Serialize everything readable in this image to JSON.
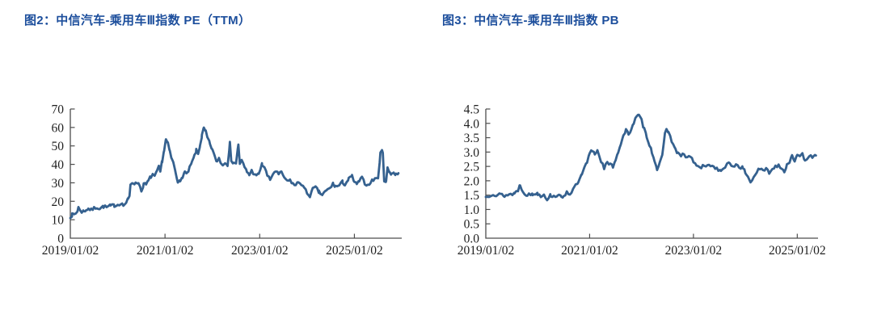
{
  "styles": {
    "background": "#ffffff",
    "title_color": "#1c4e9c",
    "line_color": "#35618f",
    "axis_color": "#4d4d4d",
    "tick_label_color": "#1f1f1f"
  },
  "chart_data": [
    {
      "type": "line",
      "title": "图2：中信汽车-乘用车Ⅲ指数 PE（TTM）",
      "xlabel": "",
      "ylabel": "",
      "grid": false,
      "legend": "none",
      "x_ticks": [
        "2019/01/02",
        "2021/01/02",
        "2023/01/02",
        "2025/01/02"
      ],
      "x_tick_years": [
        2019.0,
        2021.0,
        2023.0,
        2025.0
      ],
      "x_range": [
        2019.0,
        2026.0
      ],
      "y_tick_labels": [
        "0",
        "10",
        "20",
        "30",
        "40",
        "50",
        "60",
        "70"
      ],
      "y_tick_values": [
        0,
        10,
        20,
        30,
        40,
        50,
        60,
        70
      ],
      "ylim": [
        0,
        70
      ],
      "series": [
        {
          "name": "中信汽车-乘用车Ⅲ指数 PE(TTM)",
          "points": [
            [
              2019.0,
              11.8
            ],
            [
              2019.04,
              12.6
            ],
            [
              2019.08,
              12.9
            ],
            [
              2019.12,
              13.6
            ],
            [
              2019.15,
              14.9
            ],
            [
              2019.17,
              16.8
            ],
            [
              2019.2,
              15.0
            ],
            [
              2019.24,
              14.4
            ],
            [
              2019.28,
              14.6
            ],
            [
              2019.33,
              15.3
            ],
            [
              2019.38,
              16.0
            ],
            [
              2019.44,
              15.2
            ],
            [
              2019.5,
              16.2
            ],
            [
              2019.56,
              16.8
            ],
            [
              2019.62,
              16.1
            ],
            [
              2019.7,
              17.2
            ],
            [
              2019.77,
              16.7
            ],
            [
              2019.85,
              17.5
            ],
            [
              2019.93,
              17.8
            ],
            [
              2020.0,
              18.2
            ],
            [
              2020.06,
              19.0
            ],
            [
              2020.12,
              17.8
            ],
            [
              2020.18,
              19.2
            ],
            [
              2020.22,
              21.0
            ],
            [
              2020.25,
              22.5
            ],
            [
              2020.27,
              29.3
            ],
            [
              2020.32,
              30.4
            ],
            [
              2020.38,
              29.4
            ],
            [
              2020.44,
              30.4
            ],
            [
              2020.5,
              25.6
            ],
            [
              2020.55,
              29.4
            ],
            [
              2020.6,
              29.0
            ],
            [
              2020.65,
              31.0
            ],
            [
              2020.7,
              33.4
            ],
            [
              2020.74,
              34.5
            ],
            [
              2020.78,
              33.0
            ],
            [
              2020.83,
              36.4
            ],
            [
              2020.87,
              38.4
            ],
            [
              2020.9,
              36.0
            ],
            [
              2020.94,
              42.0
            ],
            [
              2020.98,
              47.5
            ],
            [
              2021.02,
              53.5
            ],
            [
              2021.06,
              51.0
            ],
            [
              2021.1,
              47.0
            ],
            [
              2021.14,
              43.0
            ],
            [
              2021.18,
              40.5
            ],
            [
              2021.22,
              36.5
            ],
            [
              2021.27,
              31.0
            ],
            [
              2021.32,
              30.2
            ],
            [
              2021.37,
              33.5
            ],
            [
              2021.42,
              36.0
            ],
            [
              2021.46,
              34.5
            ],
            [
              2021.52,
              38.0
            ],
            [
              2021.57,
              41.0
            ],
            [
              2021.62,
              44.5
            ],
            [
              2021.66,
              47.5
            ],
            [
              2021.7,
              45.5
            ],
            [
              2021.74,
              50.5
            ],
            [
              2021.78,
              55.5
            ],
            [
              2021.82,
              59.5
            ],
            [
              2021.86,
              57.5
            ],
            [
              2021.9,
              54.0
            ],
            [
              2021.95,
              51.0
            ],
            [
              2022.0,
              48.0
            ],
            [
              2022.05,
              44.0
            ],
            [
              2022.1,
              41.5
            ],
            [
              2022.14,
              43.5
            ],
            [
              2022.18,
              41.0
            ],
            [
              2022.22,
              39.5
            ],
            [
              2022.27,
              41.5
            ],
            [
              2022.32,
              40.0
            ],
            [
              2022.37,
              51.5
            ],
            [
              2022.4,
              41.0
            ],
            [
              2022.45,
              41.5
            ],
            [
              2022.5,
              40.5
            ],
            [
              2022.55,
              51.0
            ],
            [
              2022.58,
              40.5
            ],
            [
              2022.62,
              42.0
            ],
            [
              2022.68,
              38.5
            ],
            [
              2022.73,
              36.0
            ],
            [
              2022.78,
              34.5
            ],
            [
              2022.83,
              36.5
            ],
            [
              2022.88,
              35.0
            ],
            [
              2022.93,
              33.5
            ],
            [
              2022.98,
              35.0
            ],
            [
              2023.05,
              40.0
            ],
            [
              2023.1,
              38.5
            ],
            [
              2023.16,
              34.0
            ],
            [
              2023.22,
              31.5
            ],
            [
              2023.28,
              35.0
            ],
            [
              2023.34,
              36.5
            ],
            [
              2023.4,
              34.5
            ],
            [
              2023.46,
              35.5
            ],
            [
              2023.52,
              33.0
            ],
            [
              2023.58,
              30.5
            ],
            [
              2023.64,
              31.5
            ],
            [
              2023.7,
              29.5
            ],
            [
              2023.76,
              28.5
            ],
            [
              2023.82,
              30.5
            ],
            [
              2023.88,
              29.5
            ],
            [
              2023.94,
              27.0
            ],
            [
              2024.0,
              24.5
            ],
            [
              2024.06,
              23.0
            ],
            [
              2024.12,
              26.5
            ],
            [
              2024.18,
              27.5
            ],
            [
              2024.25,
              25.0
            ],
            [
              2024.32,
              23.5
            ],
            [
              2024.4,
              25.5
            ],
            [
              2024.48,
              27.0
            ],
            [
              2024.55,
              29.5
            ],
            [
              2024.6,
              28.0
            ],
            [
              2024.68,
              28.5
            ],
            [
              2024.75,
              30.5
            ],
            [
              2024.8,
              29.0
            ],
            [
              2024.88,
              32.0
            ],
            [
              2024.95,
              33.5
            ],
            [
              2025.0,
              30.5
            ],
            [
              2025.05,
              29.0
            ],
            [
              2025.1,
              31.0
            ],
            [
              2025.16,
              32.5
            ],
            [
              2025.22,
              30.0
            ],
            [
              2025.28,
              28.5
            ],
            [
              2025.34,
              30.5
            ],
            [
              2025.4,
              31.5
            ],
            [
              2025.46,
              33.0
            ],
            [
              2025.5,
              32.0
            ],
            [
              2025.55,
              46.5
            ],
            [
              2025.6,
              47.0
            ],
            [
              2025.63,
              31.5
            ],
            [
              2025.67,
              30.5
            ],
            [
              2025.7,
              38.0
            ],
            [
              2025.74,
              36.0
            ],
            [
              2025.78,
              35.0
            ],
            [
              2025.83,
              35.5
            ],
            [
              2025.88,
              34.5
            ],
            [
              2025.93,
              35.2
            ]
          ]
        }
      ]
    },
    {
      "type": "line",
      "title": "图3：中信汽车-乘用车Ⅲ指数 PB",
      "xlabel": "",
      "ylabel": "",
      "grid": false,
      "legend": "none",
      "x_ticks": [
        "2019/01/02",
        "2021/01/02",
        "2023/01/02",
        "2025/01/02"
      ],
      "x_tick_years": [
        2019.0,
        2021.0,
        2023.0,
        2025.0
      ],
      "x_range": [
        2019.0,
        2025.4
      ],
      "y_tick_labels": [
        "0.0",
        "0.5",
        "1.0",
        "1.5",
        "2.0",
        "2.5",
        "3.0",
        "3.5",
        "4.0",
        "4.5"
      ],
      "y_tick_values": [
        0,
        0.5,
        1.0,
        1.5,
        2.0,
        2.5,
        3.0,
        3.5,
        4.0,
        4.5
      ],
      "ylim": [
        0,
        4.5
      ],
      "series": [
        {
          "name": "中信汽车-乘用车Ⅲ指数 PB",
          "points": [
            [
              2019.0,
              1.43
            ],
            [
              2019.08,
              1.5
            ],
            [
              2019.14,
              1.56
            ],
            [
              2019.2,
              1.48
            ],
            [
              2019.28,
              1.53
            ],
            [
              2019.36,
              1.48
            ],
            [
              2019.45,
              1.52
            ],
            [
              2019.55,
              1.56
            ],
            [
              2019.62,
              1.68
            ],
            [
              2019.66,
              1.85
            ],
            [
              2019.72,
              1.62
            ],
            [
              2019.8,
              1.5
            ],
            [
              2019.9,
              1.53
            ],
            [
              2020.0,
              1.56
            ],
            [
              2020.06,
              1.48
            ],
            [
              2020.12,
              1.53
            ],
            [
              2020.18,
              1.36
            ],
            [
              2020.25,
              1.5
            ],
            [
              2020.31,
              1.45
            ],
            [
              2020.38,
              1.51
            ],
            [
              2020.45,
              1.42
            ],
            [
              2020.5,
              1.48
            ],
            [
              2020.56,
              1.6
            ],
            [
              2020.62,
              1.55
            ],
            [
              2020.7,
              1.74
            ],
            [
              2020.78,
              1.95
            ],
            [
              2020.85,
              2.2
            ],
            [
              2020.9,
              2.45
            ],
            [
              2020.95,
              2.62
            ],
            [
              2021.0,
              2.95
            ],
            [
              2021.05,
              3.06
            ],
            [
              2021.1,
              2.95
            ],
            [
              2021.15,
              3.05
            ],
            [
              2021.22,
              2.7
            ],
            [
              2021.28,
              2.45
            ],
            [
              2021.34,
              2.62
            ],
            [
              2021.4,
              2.55
            ],
            [
              2021.45,
              2.5
            ],
            [
              2021.5,
              2.75
            ],
            [
              2021.55,
              3.0
            ],
            [
              2021.6,
              3.3
            ],
            [
              2021.65,
              3.55
            ],
            [
              2021.7,
              3.76
            ],
            [
              2021.75,
              3.6
            ],
            [
              2021.8,
              3.82
            ],
            [
              2021.85,
              4.02
            ],
            [
              2021.9,
              4.22
            ],
            [
              2021.95,
              4.27
            ],
            [
              2022.0,
              4.1
            ],
            [
              2022.05,
              3.8
            ],
            [
              2022.1,
              3.55
            ],
            [
              2022.15,
              3.28
            ],
            [
              2022.2,
              3.0
            ],
            [
              2022.25,
              2.72
            ],
            [
              2022.3,
              2.42
            ],
            [
              2022.35,
              2.58
            ],
            [
              2022.4,
              2.85
            ],
            [
              2022.45,
              3.62
            ],
            [
              2022.48,
              3.86
            ],
            [
              2022.52,
              3.68
            ],
            [
              2022.58,
              3.4
            ],
            [
              2022.65,
              3.1
            ],
            [
              2022.7,
              2.95
            ],
            [
              2022.76,
              2.86
            ],
            [
              2022.82,
              2.92
            ],
            [
              2022.88,
              2.8
            ],
            [
              2022.94,
              2.86
            ],
            [
              2023.0,
              2.66
            ],
            [
              2023.06,
              2.55
            ],
            [
              2023.12,
              2.42
            ],
            [
              2023.18,
              2.52
            ],
            [
              2023.24,
              2.46
            ],
            [
              2023.3,
              2.6
            ],
            [
              2023.36,
              2.5
            ],
            [
              2023.42,
              2.46
            ],
            [
              2023.48,
              2.4
            ],
            [
              2023.53,
              2.3
            ],
            [
              2023.58,
              2.45
            ],
            [
              2023.65,
              2.56
            ],
            [
              2023.7,
              2.6
            ],
            [
              2023.76,
              2.5
            ],
            [
              2023.82,
              2.56
            ],
            [
              2023.88,
              2.5
            ],
            [
              2023.95,
              2.44
            ],
            [
              2024.0,
              2.3
            ],
            [
              2024.05,
              2.12
            ],
            [
              2024.1,
              1.97
            ],
            [
              2024.16,
              2.12
            ],
            [
              2024.22,
              2.32
            ],
            [
              2024.28,
              2.4
            ],
            [
              2024.34,
              2.34
            ],
            [
              2024.4,
              2.4
            ],
            [
              2024.46,
              2.3
            ],
            [
              2024.52,
              2.4
            ],
            [
              2024.58,
              2.5
            ],
            [
              2024.64,
              2.56
            ],
            [
              2024.7,
              2.45
            ],
            [
              2024.75,
              2.32
            ],
            [
              2024.8,
              2.56
            ],
            [
              2024.85,
              2.66
            ],
            [
              2024.9,
              2.92
            ],
            [
              2024.95,
              2.7
            ],
            [
              2025.0,
              2.86
            ],
            [
              2025.05,
              2.8
            ],
            [
              2025.1,
              2.92
            ],
            [
              2025.15,
              2.72
            ],
            [
              2025.2,
              2.82
            ],
            [
              2025.26,
              2.92
            ],
            [
              2025.31,
              2.8
            ],
            [
              2025.36,
              2.88
            ]
          ]
        }
      ]
    }
  ]
}
